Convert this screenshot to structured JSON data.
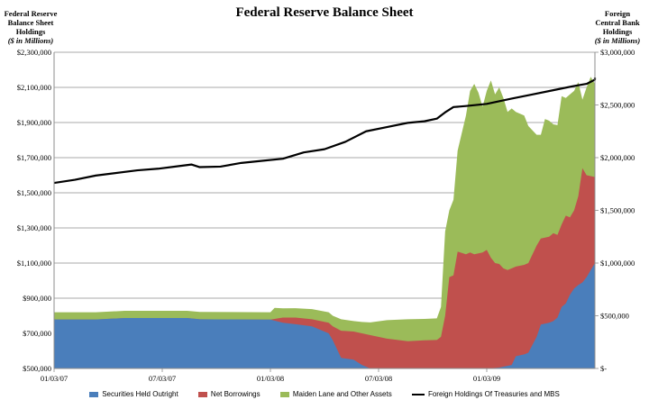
{
  "chart_data": {
    "type": "area",
    "title": "Federal Reserve Balance Sheet",
    "ylabel_left": {
      "line1": "Federal Reserve",
      "line2": "Balance Sheet",
      "line3": "Holdings",
      "unit": "($ in Millions)"
    },
    "ylabel_right": {
      "line1": "Foreign",
      "line2": "Central Bank",
      "line3": "Holdings",
      "unit": "($ in Millions)"
    },
    "xlim": [
      0,
      130
    ],
    "x_ticks": [
      {
        "x": 0,
        "label": "01/03/07"
      },
      {
        "x": 26,
        "label": "07/03/07"
      },
      {
        "x": 52,
        "label": "01/03/08"
      },
      {
        "x": 78,
        "label": "07/03/08"
      },
      {
        "x": 104,
        "label": "01/03/09"
      }
    ],
    "ylim_left": [
      500000,
      2300000
    ],
    "yticks_left": [
      "$500,000",
      "$700,000",
      "$900,000",
      "$1,100,000",
      "$1,300,000",
      "$1,500,000",
      "$1,700,000",
      "$1,900,000",
      "$2,100,000",
      "$2,300,000"
    ],
    "ylim_right": [
      0,
      3000000
    ],
    "yticks_right": [
      "$-",
      "$500,000",
      "$1,000,000",
      "$1,500,000",
      "$2,000,000",
      "$2,500,000",
      "$3,000,000"
    ],
    "grid": true,
    "legend_position": "bottom",
    "colors": {
      "securities": "#4a7ebb",
      "borrowings": "#c0504d",
      "maiden": "#9bbb59",
      "foreign": "#000000"
    },
    "legend": [
      "Securities Held Outright",
      "Net Borrowings",
      "Maiden Lane and Other Assets",
      "Foreign Holdings Of Treasuries and MBS"
    ],
    "series": [
      {
        "key": "securities",
        "points": [
          [
            0,
            779000
          ],
          [
            10,
            779000
          ],
          [
            17,
            787000
          ],
          [
            32,
            787000
          ],
          [
            35,
            780000
          ],
          [
            52,
            778000
          ],
          [
            55,
            760000
          ],
          [
            58,
            752000
          ],
          [
            62,
            740000
          ],
          [
            66,
            700000
          ],
          [
            67,
            660000
          ],
          [
            69,
            560000
          ],
          [
            72,
            550000
          ],
          [
            74,
            520000
          ],
          [
            76,
            500000
          ],
          [
            100,
            500000
          ],
          [
            104,
            500000
          ],
          [
            107,
            505000
          ],
          [
            110,
            520000
          ],
          [
            111,
            570000
          ],
          [
            113,
            580000
          ],
          [
            114,
            590000
          ],
          [
            116,
            680000
          ],
          [
            117,
            750000
          ],
          [
            118,
            755000
          ],
          [
            119,
            760000
          ],
          [
            120,
            770000
          ],
          [
            121,
            790000
          ],
          [
            122,
            850000
          ],
          [
            123,
            870000
          ],
          [
            124,
            920000
          ],
          [
            125,
            955000
          ],
          [
            126,
            975000
          ],
          [
            127,
            990000
          ],
          [
            128,
            1020000
          ],
          [
            129,
            1060000
          ],
          [
            130,
            1100000
          ],
          [
            131,
            1120000
          ],
          [
            132,
            1135000
          ],
          [
            133,
            1140000
          ],
          [
            134,
            1160000
          ]
        ]
      },
      {
        "key": "borrowings",
        "points": [
          [
            0,
            779000
          ],
          [
            10,
            779000
          ],
          [
            17,
            787000
          ],
          [
            32,
            787000
          ],
          [
            35,
            780000
          ],
          [
            52,
            778000
          ],
          [
            55,
            790000
          ],
          [
            58,
            790000
          ],
          [
            62,
            780000
          ],
          [
            66,
            760000
          ],
          [
            67,
            740000
          ],
          [
            69,
            715000
          ],
          [
            72,
            710000
          ],
          [
            74,
            700000
          ],
          [
            76,
            690000
          ],
          [
            80,
            670000
          ],
          [
            85,
            655000
          ],
          [
            89,
            660000
          ],
          [
            92,
            662000
          ],
          [
            93,
            680000
          ],
          [
            94,
            800000
          ],
          [
            95,
            1020000
          ],
          [
            96,
            1030000
          ],
          [
            97,
            1165000
          ],
          [
            99,
            1150000
          ],
          [
            100,
            1160000
          ],
          [
            101,
            1150000
          ],
          [
            102,
            1155000
          ],
          [
            103,
            1160000
          ],
          [
            104,
            1175000
          ],
          [
            105,
            1130000
          ],
          [
            106,
            1100000
          ],
          [
            107,
            1095000
          ],
          [
            108,
            1070000
          ],
          [
            109,
            1060000
          ],
          [
            110,
            1070000
          ],
          [
            111,
            1080000
          ],
          [
            113,
            1090000
          ],
          [
            114,
            1100000
          ],
          [
            116,
            1200000
          ],
          [
            117,
            1240000
          ],
          [
            118,
            1245000
          ],
          [
            119,
            1250000
          ],
          [
            120,
            1270000
          ],
          [
            121,
            1260000
          ],
          [
            122,
            1320000
          ],
          [
            123,
            1370000
          ],
          [
            124,
            1360000
          ],
          [
            125,
            1400000
          ],
          [
            126,
            1480000
          ],
          [
            127,
            1640000
          ],
          [
            128,
            1600000
          ],
          [
            129,
            1595000
          ],
          [
            130,
            1590000
          ],
          [
            131,
            1570000
          ],
          [
            132,
            1590000
          ],
          [
            133,
            1620000
          ],
          [
            134,
            1600000
          ]
        ]
      },
      {
        "key": "maiden",
        "points": [
          [
            0,
            820000
          ],
          [
            10,
            820000
          ],
          [
            17,
            828000
          ],
          [
            32,
            828000
          ],
          [
            35,
            822000
          ],
          [
            52,
            820000
          ],
          [
            53,
            845000
          ],
          [
            55,
            842000
          ],
          [
            58,
            843000
          ],
          [
            62,
            838000
          ],
          [
            66,
            820000
          ],
          [
            67,
            800000
          ],
          [
            69,
            780000
          ],
          [
            72,
            770000
          ],
          [
            74,
            765000
          ],
          [
            76,
            762000
          ],
          [
            80,
            775000
          ],
          [
            85,
            780000
          ],
          [
            89,
            782000
          ],
          [
            92,
            785000
          ],
          [
            93,
            850000
          ],
          [
            94,
            1280000
          ],
          [
            95,
            1400000
          ],
          [
            96,
            1460000
          ],
          [
            97,
            1740000
          ],
          [
            99,
            1940000
          ],
          [
            100,
            2080000
          ],
          [
            101,
            2120000
          ],
          [
            102,
            2070000
          ],
          [
            103,
            1990000
          ],
          [
            104,
            2080000
          ],
          [
            105,
            2140000
          ],
          [
            106,
            2060000
          ],
          [
            107,
            2100000
          ],
          [
            108,
            2040000
          ],
          [
            109,
            1960000
          ],
          [
            110,
            1980000
          ],
          [
            111,
            1960000
          ],
          [
            113,
            1940000
          ],
          [
            114,
            1880000
          ],
          [
            116,
            1830000
          ],
          [
            117,
            1830000
          ],
          [
            118,
            1920000
          ],
          [
            119,
            1910000
          ],
          [
            120,
            1890000
          ],
          [
            121,
            1885000
          ],
          [
            122,
            2050000
          ],
          [
            123,
            2040000
          ],
          [
            124,
            2060000
          ],
          [
            125,
            2080000
          ],
          [
            126,
            2130000
          ],
          [
            127,
            2030000
          ],
          [
            128,
            2100000
          ],
          [
            129,
            2160000
          ],
          [
            130,
            2120000
          ],
          [
            131,
            2060000
          ],
          [
            132,
            2050000
          ],
          [
            133,
            2040000
          ],
          [
            134,
            2060000
          ]
        ]
      }
    ],
    "foreign_line": [
      [
        0,
        1760000
      ],
      [
        5,
        1790000
      ],
      [
        10,
        1830000
      ],
      [
        20,
        1880000
      ],
      [
        25,
        1895000
      ],
      [
        30,
        1920000
      ],
      [
        33,
        1935000
      ],
      [
        35,
        1910000
      ],
      [
        40,
        1915000
      ],
      [
        45,
        1950000
      ],
      [
        50,
        1970000
      ],
      [
        55,
        1990000
      ],
      [
        60,
        2050000
      ],
      [
        65,
        2080000
      ],
      [
        70,
        2150000
      ],
      [
        75,
        2250000
      ],
      [
        80,
        2290000
      ],
      [
        85,
        2330000
      ],
      [
        89,
        2345000
      ],
      [
        92,
        2370000
      ],
      [
        94,
        2430000
      ],
      [
        96,
        2480000
      ],
      [
        99,
        2490000
      ],
      [
        104,
        2510000
      ],
      [
        110,
        2560000
      ],
      [
        115,
        2600000
      ],
      [
        120,
        2640000
      ],
      [
        125,
        2680000
      ],
      [
        128,
        2700000
      ],
      [
        131,
        2740000
      ],
      [
        134,
        2760000
      ]
    ]
  }
}
